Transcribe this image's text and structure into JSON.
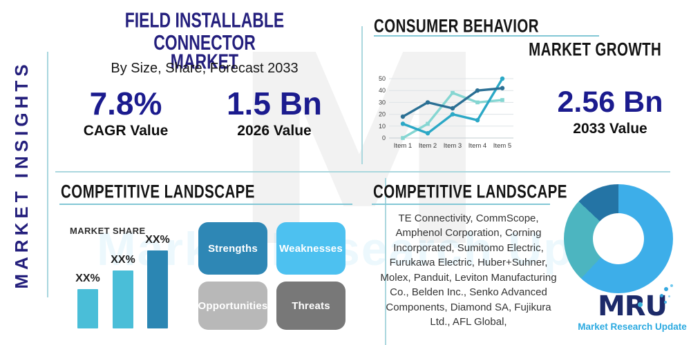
{
  "colors": {
    "navy_title": "#241f7d",
    "navy_value": "#1b1b8e",
    "heading_black": "#141414",
    "teal_rule": "#82c7d5",
    "divider": "#aad7de",
    "logo_navy": "#1c2a69",
    "logo_blue": "#2aa9e0"
  },
  "watermark": {
    "letter": "M",
    "text": "Market Research Update"
  },
  "sidebar": {
    "label": "MARKET INSIGHTS"
  },
  "header": {
    "title_line1": "FIELD INSTALLABLE CONNECTOR",
    "title_line2": "MARKET",
    "subtitle": "By Size, Share, Forecast 2033"
  },
  "stats": {
    "cagr": {
      "value": "7.8%",
      "label": "CAGR Value"
    },
    "value_2026": {
      "value": "1.5 Bn",
      "label": "2026 Value"
    },
    "value_2033": {
      "value": "2.56 Bn",
      "label": "2033 Value"
    }
  },
  "sections": {
    "consumer_behavior": {
      "title": "CONSUMER BEHAVIOR",
      "subtitle": "MARKET GROWTH"
    },
    "competitive_left": {
      "title": "COMPETITIVE LANDSCAPE",
      "market_share_label": "MARKET SHARE",
      "swot": [
        {
          "label": "Strengths",
          "color": "#2e87b5"
        },
        {
          "label": "Weaknesses",
          "color": "#4dc1f0"
        },
        {
          "label": "Opportunities",
          "color": "#b8b8b8"
        },
        {
          "label": "Threats",
          "color": "#787878"
        }
      ]
    },
    "competitive_right": {
      "title": "COMPETITIVE LANDSCAPE",
      "companies": "TE Connectivity, CommScope, Amphenol Corporation, Corning Incorporated, Sumitomo Electric, Furukawa Electric, Huber+Suhner, Molex, Panduit, Leviton Manufacturing Co., Belden Inc., Senko Advanced Components, Diamond SA, Fujikura Ltd., AFL Global,"
    }
  },
  "logo": {
    "text": "MRU",
    "subtitle": "Market Research Update"
  },
  "chart_data": [
    {
      "id": "market-growth-line",
      "type": "line",
      "x": [
        "Item 1",
        "Item 2",
        "Item 3",
        "Item 4",
        "Item 5"
      ],
      "ylim": [
        0,
        50
      ],
      "yticks": [
        0,
        10,
        20,
        30,
        40,
        50
      ],
      "grid": true,
      "legend": "none",
      "series": [
        {
          "name": "series-light-teal",
          "color": "#85d6d2",
          "marker": "square",
          "values": [
            0,
            12,
            38,
            30,
            32
          ]
        },
        {
          "name": "series-medium-teal",
          "color": "#2ba8c6",
          "marker": "circle",
          "values": [
            12,
            4,
            20,
            15,
            50
          ]
        },
        {
          "name": "series-dark-blue",
          "color": "#2a6f94",
          "marker": "circle",
          "values": [
            18,
            30,
            25,
            40,
            42
          ]
        }
      ]
    },
    {
      "id": "market-share-bars",
      "type": "bar",
      "labels": [
        "XX%",
        "XX%",
        "XX%"
      ],
      "relative_heights": [
        0.5,
        0.74,
        1.0
      ],
      "colors": [
        "#4abed8",
        "#4abed8",
        "#2b86b3"
      ]
    },
    {
      "id": "company-share-donut",
      "type": "pie",
      "slices": [
        {
          "name": "segment-primary",
          "value": 62,
          "color": "#3daee9"
        },
        {
          "name": "segment-teal",
          "value": 25,
          "color": "#4cb5c0"
        },
        {
          "name": "segment-dark",
          "value": 13,
          "color": "#2474a5"
        }
      ]
    }
  ]
}
